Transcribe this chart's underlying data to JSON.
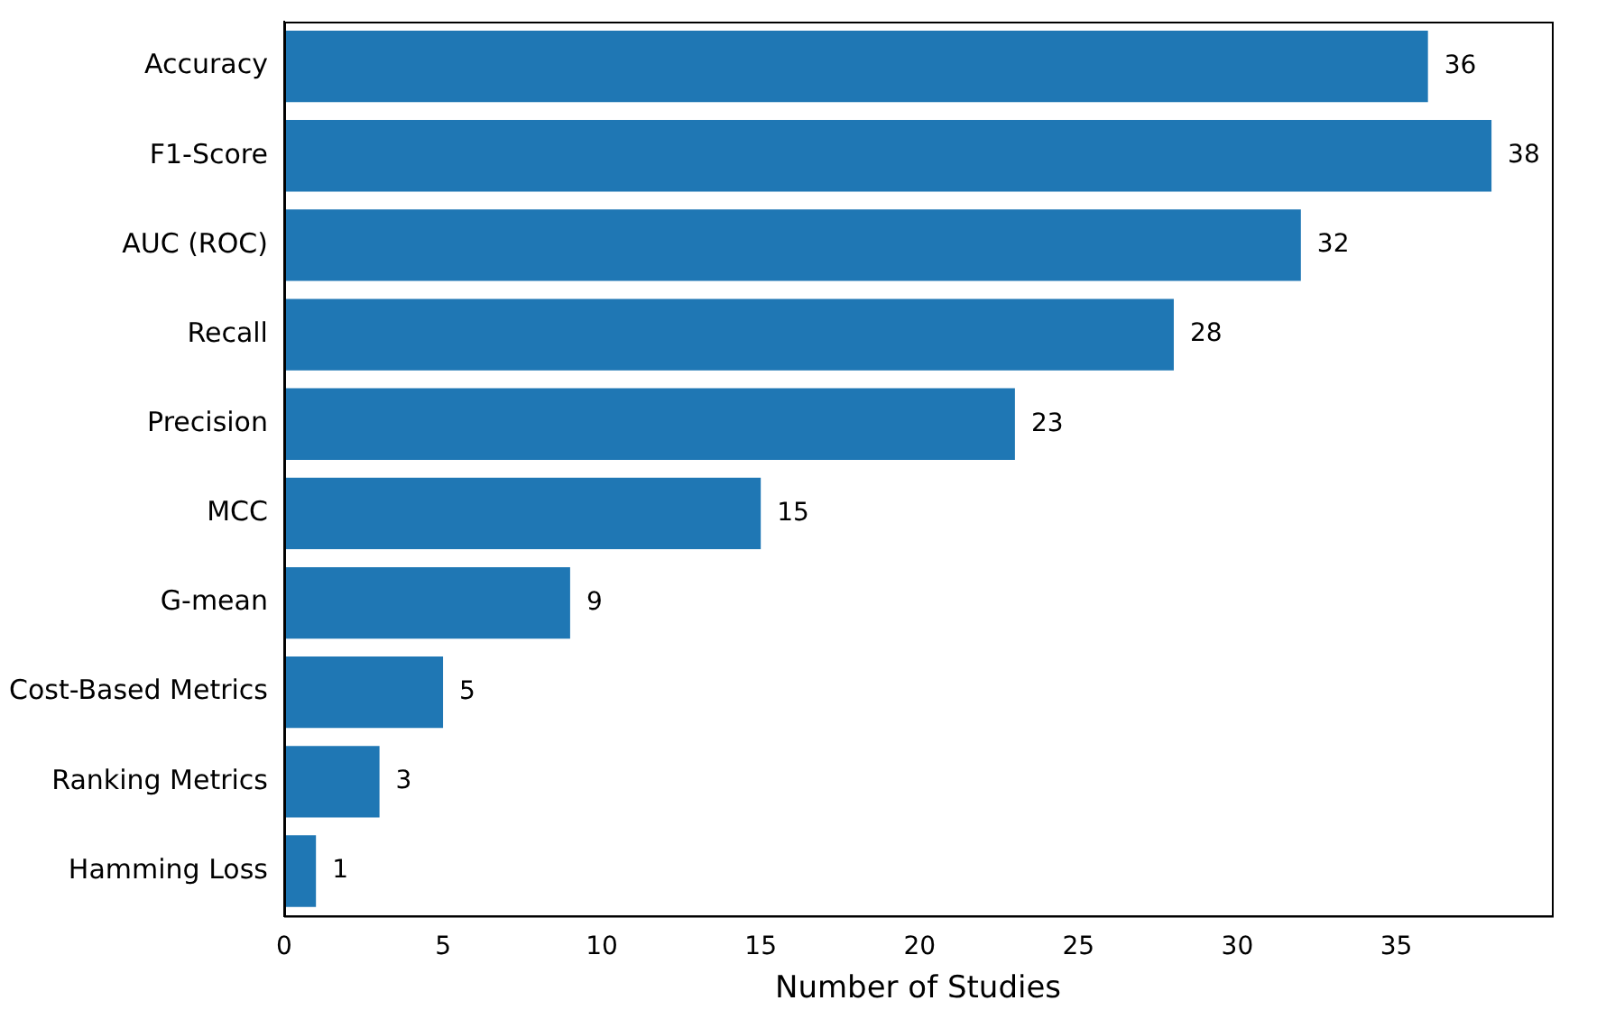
{
  "chart_data": {
    "type": "bar",
    "orientation": "horizontal",
    "xlabel": "Number of Studies",
    "categories": [
      "Accuracy",
      "F1-Score",
      "AUC (ROC)",
      "Recall",
      "Precision",
      "MCC",
      "G-mean",
      "Cost-Based Metrics",
      "Ranking Metrics",
      "Hamming Loss"
    ],
    "values": [
      36,
      38,
      32,
      28,
      23,
      15,
      9,
      5,
      3,
      1
    ],
    "color": "#1f77b4",
    "xlim": [
      0,
      39.9
    ],
    "xticks": [
      0,
      5,
      10,
      15,
      20,
      25,
      30,
      35
    ],
    "grid": false,
    "data_labels": true
  }
}
